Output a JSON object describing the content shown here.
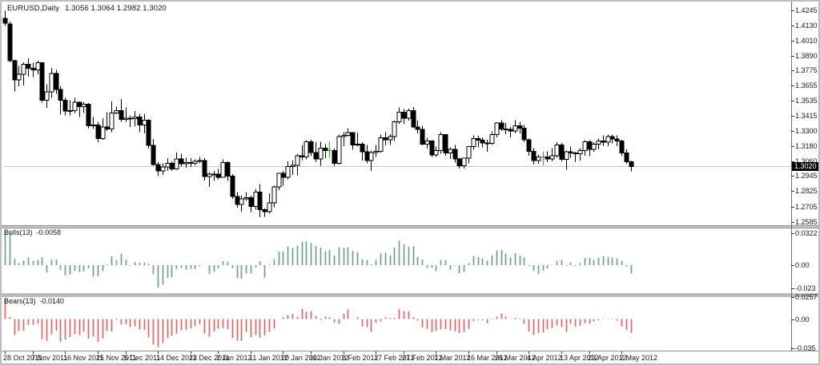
{
  "header": {
    "symbol_period": "EURUSD,Daily",
    "quote": "1.3056 1.3064 1.2982 1.3020"
  },
  "indicators": {
    "bulls_label": "Bulls(13)",
    "bulls_value": "-0.0058",
    "bears_label": "Bears(13)",
    "bears_value": "-0.0140"
  },
  "chart_data": {
    "type": "candlestick",
    "title": "EURUSD,Daily",
    "current_price_label": "1.3020",
    "current_price": 1.302,
    "indicator_period": 13,
    "ema_seed": 1.375,
    "price_axis_labels": [
      "1.4245",
      "1.4130",
      "1.4010",
      "1.3890",
      "1.3775",
      "1.3655",
      "1.3535",
      "1.3415",
      "1.3300",
      "1.3180",
      "1.3060",
      "1.2945",
      "1.2825",
      "1.2705",
      "1.2585"
    ],
    "time_axis_labels": [
      {
        "bar": 0,
        "text": "28 Oct 2011"
      },
      {
        "bar": 6,
        "text": "7 Nov 2011"
      },
      {
        "bar": 13,
        "text": "16 Nov 2011"
      },
      {
        "bar": 20,
        "text": "25 Nov 2011"
      },
      {
        "bar": 26,
        "text": "5 Dec 2011"
      },
      {
        "bar": 33,
        "text": "14 Dec 2011"
      },
      {
        "bar": 40,
        "text": "23 Dec 2011"
      },
      {
        "bar": 46,
        "text": "2 Jan 2012"
      },
      {
        "bar": 53,
        "text": "11 Jan 2012"
      },
      {
        "bar": 60,
        "text": "20 Jan 2012"
      },
      {
        "bar": 66,
        "text": "30 Jan 2012"
      },
      {
        "bar": 73,
        "text": "8 Feb 2012"
      },
      {
        "bar": 80,
        "text": "17 Feb 2012"
      },
      {
        "bar": 86,
        "text": "27 Feb 2012"
      },
      {
        "bar": 93,
        "text": "7 Mar 2012"
      },
      {
        "bar": 100,
        "text": "16 Mar 2012"
      },
      {
        "bar": 106,
        "text": "26 Mar 2012"
      },
      {
        "bar": 113,
        "text": "4 Apr 2012"
      },
      {
        "bar": 120,
        "text": "13 Apr 2012"
      },
      {
        "bar": 126,
        "text": "23 Apr 2012"
      },
      {
        "bar": 133,
        "text": "2 May 2012"
      }
    ],
    "bulls_axis_labels": [
      {
        "text": "0.0322",
        "value": 0.0322
      },
      {
        "text": "0.00",
        "value": 0
      },
      {
        "text": "-0.023",
        "value": -0.023
      }
    ],
    "bears_axis_labels": [
      {
        "text": "0.0257",
        "value": 0.0257
      },
      {
        "text": "0.00",
        "value": 0
      },
      {
        "text": "-0.035",
        "value": -0.035
      }
    ],
    "lime_doji_bars": [
      70,
      116
    ],
    "colors": {
      "bear_candle": "#000000",
      "bull_candle_fill": "#ffffff",
      "candle_outline": "#000000",
      "doji": "#00cc00",
      "bulls_histogram": "#6ba485",
      "bears_histogram": "#e26262",
      "current_price_line": "#c8c8c8",
      "separator": "#c9c9c9",
      "separator_edge": "#8e8e8e",
      "axis_line": "#6e6e6e",
      "badge_bg": "#000000",
      "badge_text": "#ffffff"
    },
    "candles_ohlc": [
      [
        1.4183,
        1.4244,
        1.4123,
        1.4147
      ],
      [
        1.414,
        1.416,
        1.3838,
        1.3852
      ],
      [
        1.385,
        1.386,
        1.3608,
        1.37
      ],
      [
        1.37,
        1.381,
        1.365,
        1.3745
      ],
      [
        1.3745,
        1.384,
        1.3655,
        1.3823
      ],
      [
        1.3823,
        1.387,
        1.3725,
        1.379
      ],
      [
        1.379,
        1.3835,
        1.3723,
        1.3778
      ],
      [
        1.3778,
        1.385,
        1.3745,
        1.3835
      ],
      [
        1.3835,
        1.384,
        1.3523,
        1.354
      ],
      [
        1.354,
        1.3665,
        1.348,
        1.3605
      ],
      [
        1.3605,
        1.3795,
        1.356,
        1.375
      ],
      [
        1.375,
        1.378,
        1.359,
        1.3625
      ],
      [
        1.3625,
        1.365,
        1.3429,
        1.354
      ],
      [
        1.354,
        1.356,
        1.342,
        1.3455
      ],
      [
        1.3455,
        1.354,
        1.342,
        1.346
      ],
      [
        1.346,
        1.356,
        1.344,
        1.3525
      ],
      [
        1.3525,
        1.353,
        1.341,
        1.349
      ],
      [
        1.349,
        1.3525,
        1.344,
        1.351
      ],
      [
        1.351,
        1.352,
        1.332,
        1.334
      ],
      [
        1.334,
        1.341,
        1.3315,
        1.3345
      ],
      [
        1.3345,
        1.337,
        1.321,
        1.3238
      ],
      [
        1.3238,
        1.34,
        1.323,
        1.333
      ],
      [
        1.333,
        1.3445,
        1.33,
        1.3315
      ],
      [
        1.3315,
        1.353,
        1.329,
        1.344
      ],
      [
        1.344,
        1.349,
        1.343,
        1.346
      ],
      [
        1.346,
        1.355,
        1.337,
        1.339
      ],
      [
        1.339,
        1.3485,
        1.337,
        1.34
      ],
      [
        1.34,
        1.342,
        1.333,
        1.3395
      ],
      [
        1.3395,
        1.3455,
        1.3335,
        1.341
      ],
      [
        1.341,
        1.3435,
        1.329,
        1.3345
      ],
      [
        1.3345,
        1.3435,
        1.328,
        1.3385
      ],
      [
        1.3385,
        1.339,
        1.316,
        1.3185
      ],
      [
        1.3185,
        1.3235,
        1.3025,
        1.3035
      ],
      [
        1.3035,
        1.3055,
        1.2945,
        1.2985
      ],
      [
        1.2985,
        1.3045,
        1.2955,
        1.3015
      ],
      [
        1.3015,
        1.3085,
        1.2985,
        1.3045
      ],
      [
        1.3045,
        1.306,
        1.2985,
        1.3
      ],
      [
        1.3,
        1.313,
        1.2995,
        1.308
      ],
      [
        1.308,
        1.312,
        1.302,
        1.304
      ],
      [
        1.304,
        1.309,
        1.301,
        1.305
      ],
      [
        1.305,
        1.3085,
        1.3015,
        1.3045
      ],
      [
        1.3045,
        1.3075,
        1.303,
        1.306
      ],
      [
        1.306,
        1.3095,
        1.3045,
        1.3065
      ],
      [
        1.3065,
        1.3085,
        1.291,
        1.294
      ],
      [
        1.294,
        1.2975,
        1.2858,
        1.296
      ],
      [
        1.296,
        1.2985,
        1.2905,
        1.296
      ],
      [
        1.296,
        1.3,
        1.292,
        1.2935
      ],
      [
        1.2935,
        1.3075,
        1.293,
        1.305
      ],
      [
        1.305,
        1.306,
        1.2905,
        1.2945
      ],
      [
        1.2945,
        1.296,
        1.2765,
        1.2785
      ],
      [
        1.2785,
        1.282,
        1.2695,
        1.272
      ],
      [
        1.272,
        1.279,
        1.2665,
        1.2765
      ],
      [
        1.2765,
        1.282,
        1.275,
        1.2775
      ],
      [
        1.2775,
        1.279,
        1.266,
        1.2705
      ],
      [
        1.2705,
        1.2845,
        1.268,
        1.282
      ],
      [
        1.282,
        1.288,
        1.262,
        1.268
      ],
      [
        1.268,
        1.269,
        1.2623,
        1.2665
      ],
      [
        1.2665,
        1.281,
        1.265,
        1.2735
      ],
      [
        1.2735,
        1.287,
        1.27,
        1.286
      ],
      [
        1.286,
        1.297,
        1.2835,
        1.2965
      ],
      [
        1.2965,
        1.2985,
        1.287,
        1.2935
      ],
      [
        1.2935,
        1.306,
        1.292,
        1.302
      ],
      [
        1.302,
        1.3065,
        1.2955,
        1.303
      ],
      [
        1.303,
        1.312,
        1.295,
        1.3105
      ],
      [
        1.3105,
        1.3185,
        1.307,
        1.3095
      ],
      [
        1.3095,
        1.3225,
        1.3075,
        1.3215
      ],
      [
        1.3215,
        1.323,
        1.31,
        1.313
      ],
      [
        1.313,
        1.321,
        1.3055,
        1.308
      ],
      [
        1.308,
        1.3215,
        1.3025,
        1.3165
      ],
      [
        1.3165,
        1.3195,
        1.3085,
        1.3145
      ],
      [
        1.3145,
        1.322,
        1.309,
        1.3145
      ],
      [
        1.3145,
        1.316,
        1.3025,
        1.3045
      ],
      [
        1.3045,
        1.327,
        1.3035,
        1.3255
      ],
      [
        1.3255,
        1.329,
        1.318,
        1.3265
      ],
      [
        1.3265,
        1.332,
        1.3255,
        1.3285
      ],
      [
        1.3285,
        1.329,
        1.315,
        1.319
      ],
      [
        1.319,
        1.3285,
        1.3175,
        1.3195
      ],
      [
        1.3195,
        1.321,
        1.3065,
        1.3135
      ],
      [
        1.3135,
        1.319,
        1.3045,
        1.3065
      ],
      [
        1.3065,
        1.3145,
        1.2985,
        1.313
      ],
      [
        1.313,
        1.319,
        1.3095,
        1.314
      ],
      [
        1.314,
        1.327,
        1.3125,
        1.3245
      ],
      [
        1.3245,
        1.329,
        1.3185,
        1.323
      ],
      [
        1.323,
        1.3275,
        1.319,
        1.3255
      ],
      [
        1.3255,
        1.338,
        1.322,
        1.337
      ],
      [
        1.337,
        1.3485,
        1.3355,
        1.3445
      ],
      [
        1.3445,
        1.347,
        1.3355,
        1.34
      ],
      [
        1.34,
        1.3475,
        1.338,
        1.346
      ],
      [
        1.346,
        1.3486,
        1.332,
        1.333
      ],
      [
        1.333,
        1.338,
        1.328,
        1.331
      ],
      [
        1.331,
        1.334,
        1.3185,
        1.3195
      ],
      [
        1.3195,
        1.3245,
        1.316,
        1.322
      ],
      [
        1.322,
        1.3225,
        1.3095,
        1.311
      ],
      [
        1.311,
        1.3175,
        1.3095,
        1.3145
      ],
      [
        1.3145,
        1.329,
        1.312,
        1.327
      ],
      [
        1.327,
        1.3275,
        1.3105,
        1.3125
      ],
      [
        1.3125,
        1.317,
        1.308,
        1.3155
      ],
      [
        1.3155,
        1.319,
        1.305,
        1.308
      ],
      [
        1.308,
        1.309,
        1.3005,
        1.3025
      ],
      [
        1.3025,
        1.309,
        1.3005,
        1.3085
      ],
      [
        1.3085,
        1.318,
        1.3045,
        1.3175
      ],
      [
        1.3175,
        1.3265,
        1.315,
        1.324
      ],
      [
        1.324,
        1.326,
        1.317,
        1.3225
      ],
      [
        1.3225,
        1.325,
        1.317,
        1.3205
      ],
      [
        1.3205,
        1.323,
        1.3135,
        1.32
      ],
      [
        1.32,
        1.3295,
        1.319,
        1.327
      ],
      [
        1.327,
        1.3368,
        1.325,
        1.336
      ],
      [
        1.336,
        1.3385,
        1.33,
        1.3315
      ],
      [
        1.3315,
        1.336,
        1.3275,
        1.331
      ],
      [
        1.331,
        1.333,
        1.325,
        1.33
      ],
      [
        1.33,
        1.3385,
        1.328,
        1.334
      ],
      [
        1.334,
        1.337,
        1.328,
        1.332
      ],
      [
        1.332,
        1.3345,
        1.321,
        1.323
      ],
      [
        1.323,
        1.324,
        1.3105,
        1.314
      ],
      [
        1.314,
        1.3165,
        1.3035,
        1.3065
      ],
      [
        1.3065,
        1.3115,
        1.304,
        1.3095
      ],
      [
        1.3095,
        1.3135,
        1.303,
        1.3095
      ],
      [
        1.3095,
        1.314,
        1.3055,
        1.308
      ],
      [
        1.308,
        1.3165,
        1.306,
        1.3105
      ],
      [
        1.3105,
        1.321,
        1.309,
        1.319
      ],
      [
        1.319,
        1.3205,
        1.306,
        1.3075
      ],
      [
        1.3075,
        1.3145,
        1.2995,
        1.3135
      ],
      [
        1.3135,
        1.3175,
        1.309,
        1.3125
      ],
      [
        1.3125,
        1.3135,
        1.3055,
        1.312
      ],
      [
        1.312,
        1.3165,
        1.3065,
        1.3145
      ],
      [
        1.3145,
        1.3225,
        1.3105,
        1.3215
      ],
      [
        1.3215,
        1.3225,
        1.31,
        1.3155
      ],
      [
        1.3155,
        1.321,
        1.3135,
        1.3195
      ],
      [
        1.3195,
        1.324,
        1.3155,
        1.322
      ],
      [
        1.322,
        1.3265,
        1.318,
        1.321
      ],
      [
        1.321,
        1.327,
        1.318,
        1.3255
      ],
      [
        1.3255,
        1.327,
        1.32,
        1.3235
      ],
      [
        1.3235,
        1.3265,
        1.318,
        1.322
      ],
      [
        1.322,
        1.323,
        1.31,
        1.3125
      ],
      [
        1.3125,
        1.3155,
        1.304,
        1.3058
      ],
      [
        1.3056,
        1.3064,
        1.2982,
        1.302
      ]
    ]
  }
}
